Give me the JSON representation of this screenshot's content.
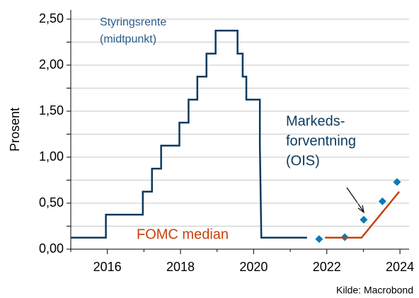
{
  "chart_data": {
    "type": "line",
    "y_label": "Prosent",
    "source": "Kilde: Macrobond",
    "xlim": [
      2015,
      2024.25
    ],
    "ylim": [
      0,
      2.6
    ],
    "xticks": [
      2016,
      2018,
      2020,
      2022,
      2024
    ],
    "minor_xticks": [
      2015,
      2017,
      2019,
      2021,
      2023
    ],
    "yticks": [
      {
        "value": 0,
        "label": "0,00"
      },
      {
        "value": 0.5,
        "label": "0,50"
      },
      {
        "value": 1,
        "label": "1,00"
      },
      {
        "value": 1.5,
        "label": "1,50"
      },
      {
        "value": 2,
        "label": "2,00"
      },
      {
        "value": 2.5,
        "label": "2,50"
      }
    ],
    "minor_yticks": [
      0.25,
      0.75,
      1.25,
      1.75,
      2.25
    ],
    "grid": true,
    "series": [
      {
        "name": [
          "Styringsrente",
          "(midtpunkt)"
        ],
        "color": "#0d3a5c",
        "style": "line",
        "x": [
          2015,
          2015.96,
          2015.96,
          2016.97,
          2016.97,
          2017.22,
          2017.22,
          2017.47,
          2017.47,
          2017.97,
          2017.97,
          2018.22,
          2018.22,
          2018.46,
          2018.46,
          2018.71,
          2018.71,
          2018.96,
          2018.96,
          2019.56,
          2019.56,
          2019.7,
          2019.7,
          2019.8,
          2019.8,
          2020.17,
          2020.17,
          2020.21,
          2021.46
        ],
        "values": [
          0.125,
          0.125,
          0.375,
          0.375,
          0.625,
          0.625,
          0.875,
          0.875,
          1.125,
          1.125,
          1.375,
          1.375,
          1.625,
          1.625,
          1.875,
          1.875,
          2.125,
          2.125,
          2.375,
          2.375,
          2.125,
          2.125,
          1.875,
          1.875,
          1.625,
          1.625,
          1.125,
          0.125,
          0.125
        ]
      },
      {
        "name": [
          "Markeds-",
          "forventning",
          "(OIS)"
        ],
        "color": "#0a7ab8",
        "style": "markers",
        "x": [
          2021.79,
          2022.49,
          2023.01,
          2023.52,
          2023.92
        ],
        "values": [
          0.11,
          0.13,
          0.32,
          0.52,
          0.73
        ]
      },
      {
        "name": [
          "FOMC median"
        ],
        "color": "#c8400a",
        "style": "line",
        "x": [
          2021.95,
          2022.95,
          2023.98
        ],
        "values": [
          0.125,
          0.125,
          0.625
        ]
      }
    ]
  }
}
